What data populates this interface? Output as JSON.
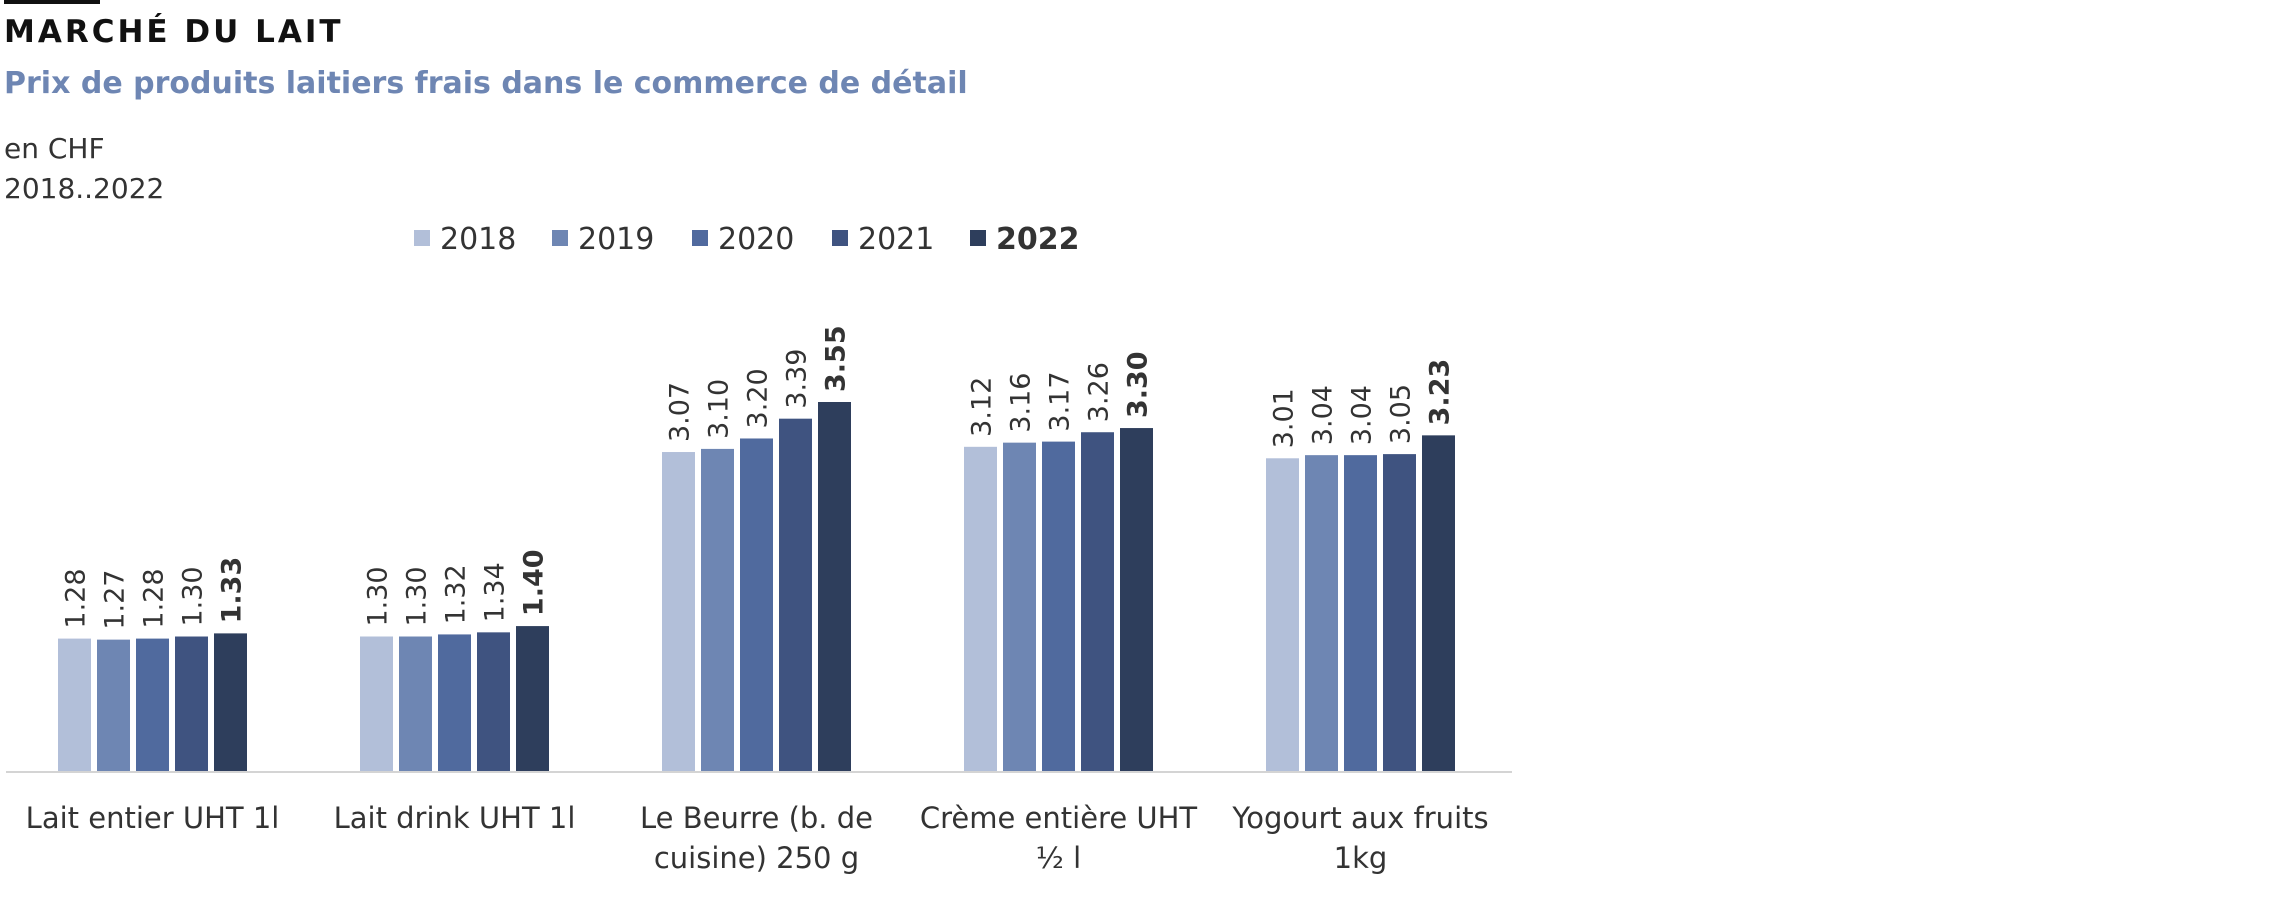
{
  "header": {
    "title": "MARCHÉ DU LAIT",
    "subtitle": "Prix de produits laitiers frais dans le commerce de détail",
    "unit": "en CHF",
    "period": "2018..2022"
  },
  "colors": {
    "series": [
      "#b2bfd9",
      "#6e86b3",
      "#506a9e",
      "#3f5380",
      "#2e3e5c"
    ],
    "axis": "#d4d4d4",
    "text": "#333333"
  },
  "chart_data": {
    "type": "bar",
    "categories": [
      [
        "Lait entier UHT 1l"
      ],
      [
        "Lait drink UHT 1l"
      ],
      [
        "Le Beurre (b. de",
        "cuisine) 250 g"
      ],
      [
        "Crème entière UHT",
        "½ l"
      ],
      [
        "Yogourt aux  fruits",
        "1kg"
      ]
    ],
    "series": [
      {
        "name": "2018",
        "values": [
          1.28,
          1.3,
          3.07,
          3.12,
          3.01
        ],
        "labels": [
          "1.28",
          "1.30",
          "3.07",
          "3.12",
          "3.01"
        ]
      },
      {
        "name": "2019",
        "values": [
          1.27,
          1.3,
          3.1,
          3.16,
          3.04
        ],
        "labels": [
          "1.27",
          "1.30",
          "3.10",
          "3.16",
          "3.04"
        ]
      },
      {
        "name": "2020",
        "values": [
          1.28,
          1.32,
          3.2,
          3.17,
          3.04
        ],
        "labels": [
          "1.28",
          "1.32",
          "3.20",
          "3.17",
          "3.04"
        ]
      },
      {
        "name": "2021",
        "values": [
          1.3,
          1.34,
          3.39,
          3.26,
          3.05
        ],
        "labels": [
          "1.30",
          "1.34",
          "3.39",
          "3.26",
          "3.05"
        ]
      },
      {
        "name": "2022",
        "values": [
          1.33,
          1.4,
          3.55,
          3.3,
          3.23
        ],
        "labels": [
          "1.33",
          "1.40",
          "3.55",
          "3.30",
          "3.23"
        ],
        "emphasis": true
      }
    ],
    "ylim": [
      0,
      3.8
    ],
    "grid": false,
    "legend": "top-center"
  }
}
